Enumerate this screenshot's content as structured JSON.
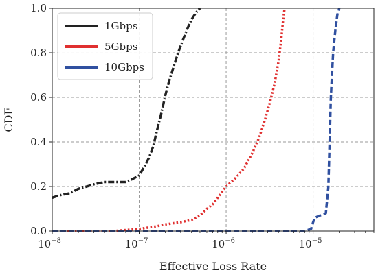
{
  "chart_data": {
    "type": "line",
    "title": "",
    "xlabel": "Effective Loss Rate",
    "ylabel": "CDF",
    "x_scale": "log",
    "xlim": [
      1e-08,
      5e-05
    ],
    "ylim": [
      0,
      1.0
    ],
    "grid": true,
    "legend_position": "top-left",
    "x_ticks": [
      {
        "value": 1e-08,
        "base": "10",
        "exp": "−8"
      },
      {
        "value": 1e-07,
        "base": "10",
        "exp": "−7"
      },
      {
        "value": 1e-06,
        "base": "10",
        "exp": "−6"
      },
      {
        "value": 1e-05,
        "base": "10",
        "exp": "−5"
      }
    ],
    "y_ticks": [
      "0.0",
      "0.2",
      "0.4",
      "0.6",
      "0.8",
      "1.0"
    ],
    "series": [
      {
        "name": "1Gbps",
        "color": "#222222",
        "style": "dashdot",
        "x": [
          1e-08,
          1.2e-08,
          1.6e-08,
          2e-08,
          2.5e-08,
          3e-08,
          4e-08,
          5e-08,
          6e-08,
          7e-08,
          8e-08,
          9e-08,
          1e-07,
          1.15e-07,
          1.3e-07,
          1.45e-07,
          1.6e-07,
          1.8e-07,
          2e-07,
          2.2e-07,
          2.5e-07,
          2.8e-07,
          3.2e-07,
          3.6e-07,
          4e-07,
          4.5e-07,
          5e-07
        ],
        "y": [
          0.15,
          0.16,
          0.17,
          0.19,
          0.2,
          0.21,
          0.22,
          0.22,
          0.22,
          0.22,
          0.23,
          0.24,
          0.25,
          0.29,
          0.33,
          0.38,
          0.45,
          0.53,
          0.61,
          0.67,
          0.74,
          0.8,
          0.86,
          0.91,
          0.95,
          0.98,
          1.0
        ]
      },
      {
        "name": "5Gbps",
        "color": "#e03030",
        "style": "dotted",
        "x": [
          1e-08,
          5e-08,
          1e-07,
          1.5e-07,
          2e-07,
          3e-07,
          4e-07,
          5e-07,
          6e-07,
          7e-07,
          8e-07,
          1e-06,
          1.3e-06,
          1.6e-06,
          2e-06,
          2.4e-06,
          2.8e-06,
          3.2e-06,
          3.6e-06,
          4e-06,
          4.3e-06,
          4.5e-06,
          4.7e-06
        ],
        "y": [
          0.0,
          0.0,
          0.01,
          0.02,
          0.03,
          0.04,
          0.05,
          0.07,
          0.1,
          0.12,
          0.15,
          0.2,
          0.24,
          0.28,
          0.35,
          0.42,
          0.5,
          0.58,
          0.66,
          0.76,
          0.86,
          0.94,
          1.0
        ]
      },
      {
        "name": "10Gbps",
        "color": "#3050a0",
        "style": "dashed",
        "x": [
          1e-08,
          1e-06,
          8e-06,
          9.5e-06,
          1e-05,
          1.05e-05,
          1.2e-05,
          1.4e-05,
          1.5e-05,
          1.55e-05,
          1.6e-05,
          1.7e-05,
          1.8e-05,
          1.9e-05,
          2e-05
        ],
        "y": [
          0.0,
          0.0,
          0.0,
          0.01,
          0.04,
          0.06,
          0.07,
          0.08,
          0.2,
          0.4,
          0.6,
          0.8,
          0.9,
          0.97,
          1.0
        ]
      }
    ]
  }
}
